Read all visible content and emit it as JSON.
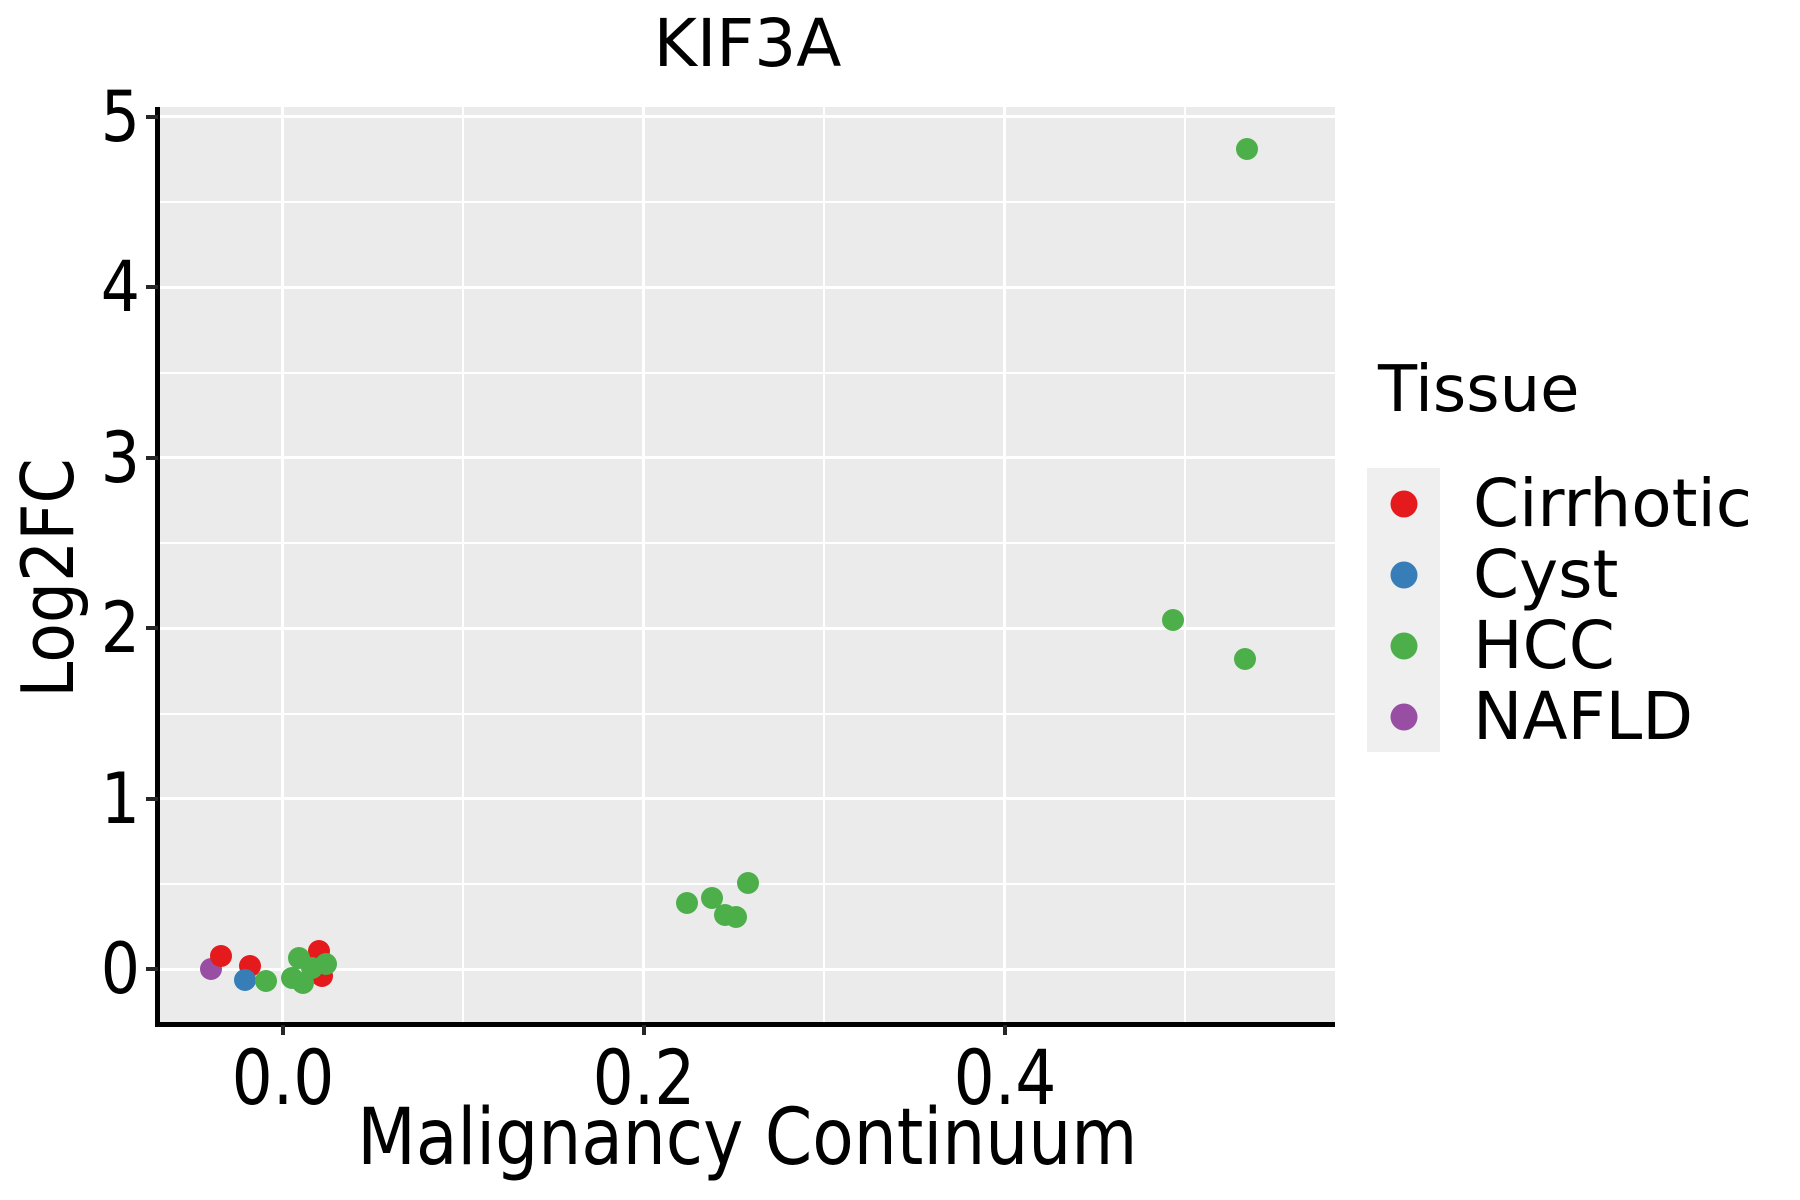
{
  "title": "KIF3A",
  "axes": {
    "x": {
      "label": "Malignancy Continuum",
      "ticks": [
        {
          "value": 0.0,
          "label": "0.0"
        },
        {
          "value": 0.2,
          "label": "0.2"
        },
        {
          "value": 0.4,
          "label": "0.4"
        }
      ],
      "minor_gridlines": [
        0.1,
        0.3,
        0.5
      ],
      "lim": [
        -0.068,
        0.583
      ]
    },
    "y": {
      "label": "Log2FC",
      "ticks": [
        {
          "value": 0,
          "label": "0"
        },
        {
          "value": 1,
          "label": "1"
        },
        {
          "value": 2,
          "label": "2"
        },
        {
          "value": 3,
          "label": "3"
        },
        {
          "value": 4,
          "label": "4"
        },
        {
          "value": 5,
          "label": "5"
        }
      ],
      "minor_gridlines": [
        0.5,
        1.5,
        2.5,
        3.5,
        4.5
      ],
      "lim": [
        -0.308,
        5.058
      ]
    }
  },
  "legend": {
    "title": "Tissue",
    "position": "right",
    "items": [
      {
        "label": "Cirrhotic",
        "color": "#E41A1C"
      },
      {
        "label": "Cyst",
        "color": "#377EB8"
      },
      {
        "label": "HCC",
        "color": "#4DAF4A"
      },
      {
        "label": "NAFLD",
        "color": "#984EA3"
      }
    ]
  },
  "colors": {
    "panel_background": "#EBEBEB",
    "gridline": "#FFFFFF",
    "axis_line": "#000000",
    "legend_key_background": "#EFEFEF",
    "text": "#000000"
  },
  "chart_data": {
    "type": "scatter",
    "title": "KIF3A",
    "xlabel": "Malignancy Continuum",
    "ylabel": "Log2FC",
    "xlim": [
      -0.068,
      0.583
    ],
    "ylim": [
      -0.308,
      5.058
    ],
    "grid": "on",
    "legend_position": "right",
    "series": [
      {
        "name": "NAFLD",
        "color": "#984EA3",
        "points": [
          [
            -0.04,
            0.0
          ]
        ]
      },
      {
        "name": "Cirrhotic",
        "color": "#E41A1C",
        "points": [
          [
            -0.034,
            0.08
          ],
          [
            -0.018,
            0.02
          ],
          [
            0.02,
            0.11
          ],
          [
            0.022,
            -0.04
          ]
        ]
      },
      {
        "name": "Cyst",
        "color": "#377EB8",
        "points": [
          [
            -0.021,
            -0.06
          ]
        ]
      },
      {
        "name": "HCC",
        "color": "#4DAF4A",
        "points": [
          [
            -0.009,
            -0.07
          ],
          [
            0.005,
            -0.05
          ],
          [
            0.009,
            0.07
          ],
          [
            0.011,
            -0.08
          ],
          [
            0.016,
            0.01
          ],
          [
            0.024,
            0.03
          ],
          [
            0.224,
            0.39
          ],
          [
            0.238,
            0.42
          ],
          [
            0.245,
            0.32
          ],
          [
            0.251,
            0.31
          ],
          [
            0.258,
            0.51
          ],
          [
            0.493,
            2.05
          ],
          [
            0.533,
            1.82
          ],
          [
            0.534,
            4.81
          ]
        ]
      }
    ]
  }
}
